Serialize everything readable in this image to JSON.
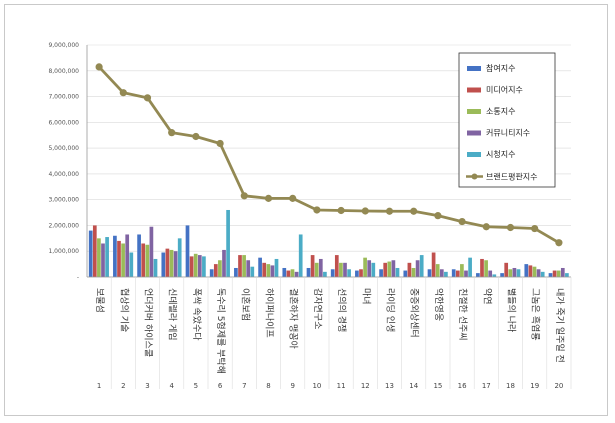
{
  "chart_data": {
    "type": "bar",
    "title": "",
    "xlabel": "",
    "ylabel": "",
    "ylim": [
      0,
      9000000
    ],
    "yticks": [
      "9,000,000",
      "8,000,000",
      "7,000,000",
      "6,000,000",
      "5,000,000",
      "4,000,000",
      "3,000,000",
      "2,000,000",
      "1,000,000",
      "-"
    ],
    "index_labels": [
      "1",
      "2",
      "3",
      "4",
      "5",
      "6",
      "7",
      "8",
      "9",
      "10",
      "11",
      "12",
      "13",
      "14",
      "15",
      "16",
      "17",
      "18",
      "19",
      "20"
    ],
    "categories": [
      "보물섬",
      "협상의 기술",
      "언더커버 하이스쿨",
      "신데렐라 게임",
      "폭싹 속았수다",
      "독수리 5형제를 부탁해",
      "이혼보험",
      "하이퍼나이프",
      "결혼하자 맹꽁아",
      "감자연구소",
      "선의의 경쟁",
      "마녀",
      "라이딩 인생",
      "중증외상센터",
      "악한영웅",
      "친절한 선주씨",
      "약연",
      "별들의 나라",
      "그놈은 흑염룡",
      "내가 죽기 일주일 전"
    ],
    "series": [
      {
        "name": "참여지수",
        "color": "#4472C4",
        "values": [
          1800000,
          1600000,
          1650000,
          950000,
          2000000,
          300000,
          350000,
          750000,
          350000,
          350000,
          300000,
          250000,
          300000,
          250000,
          300000,
          300000,
          150000,
          150000,
          500000,
          150000
        ]
      },
      {
        "name": "미디어지수",
        "color": "#C0504D",
        "values": [
          2000000,
          1400000,
          1300000,
          1100000,
          800000,
          500000,
          850000,
          550000,
          250000,
          850000,
          850000,
          300000,
          550000,
          550000,
          950000,
          250000,
          700000,
          550000,
          450000,
          250000
        ]
      },
      {
        "name": "소통지수",
        "color": "#9BBB59",
        "values": [
          1500000,
          1300000,
          1250000,
          1050000,
          900000,
          650000,
          850000,
          500000,
          300000,
          550000,
          550000,
          750000,
          600000,
          350000,
          500000,
          500000,
          650000,
          300000,
          400000,
          250000
        ]
      },
      {
        "name": "커뮤니티지수",
        "color": "#8064A2",
        "values": [
          1300000,
          1650000,
          1950000,
          1000000,
          850000,
          1050000,
          650000,
          450000,
          200000,
          700000,
          550000,
          650000,
          650000,
          650000,
          300000,
          250000,
          250000,
          350000,
          300000,
          350000
        ]
      },
      {
        "name": "시청지수",
        "color": "#4BACC6",
        "values": [
          1550000,
          950000,
          700000,
          1500000,
          800000,
          2600000,
          400000,
          700000,
          1650000,
          200000,
          300000,
          550000,
          350000,
          850000,
          200000,
          750000,
          100000,
          300000,
          200000,
          150000
        ]
      }
    ],
    "line": {
      "name": "브랜드평판지수",
      "color": "#938953",
      "values": [
        8150000,
        7150000,
        6950000,
        5600000,
        5450000,
        5180000,
        3150000,
        3050000,
        3050000,
        2600000,
        2580000,
        2560000,
        2550000,
        2550000,
        2380000,
        2150000,
        1950000,
        1920000,
        1880000,
        1330000
      ]
    },
    "legend_position": "right",
    "grid": true
  }
}
